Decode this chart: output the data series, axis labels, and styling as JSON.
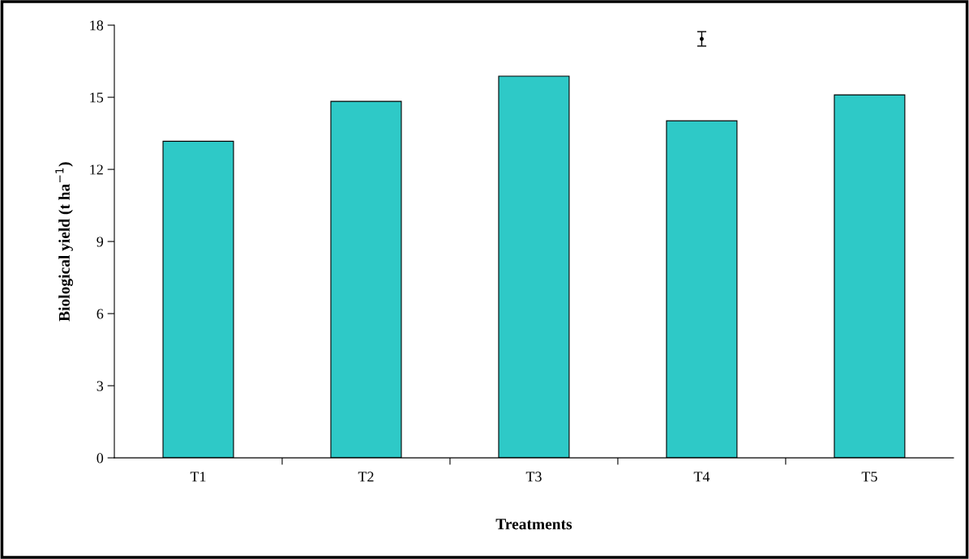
{
  "chart_data": {
    "type": "bar",
    "xlabel": "Treatments",
    "ylabel": "Biological yield (t ha$^{−1}$)",
    "categories": [
      "T1",
      "T2",
      "T3",
      "T4",
      "T5"
    ],
    "series": [
      {
        "color": "#2ec9c7",
        "values": [
          13.17,
          14.83,
          15.88,
          14.02,
          15.1
        ]
      },
      {
        "type": "scatter",
        "color": "#000000",
        "marker": "circle",
        "values": [
          null,
          null,
          null,
          17.43,
          null
        ],
        "errors": [
          null,
          null,
          null,
          0.3,
          null
        ]
      }
    ],
    "ylim": [
      0,
      18
    ],
    "yticks": [
      0,
      3,
      6,
      9,
      12,
      15,
      18
    ],
    "grid": false
  }
}
